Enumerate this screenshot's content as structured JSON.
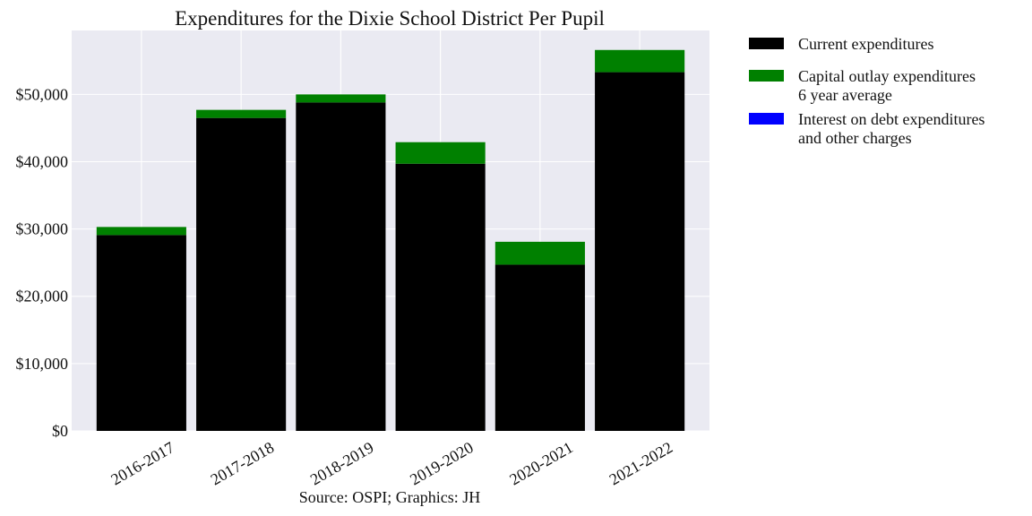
{
  "chart_data": {
    "type": "bar",
    "stacked": true,
    "title": "Expenditures for the Dixie School District Per Pupil",
    "categories": [
      "2016-2017",
      "2017-2018",
      "2018-2019",
      "2019-2020",
      "2020-2021",
      "2021-2022"
    ],
    "series": [
      {
        "name": "Current expenditures",
        "color": "#000000",
        "values": [
          29100,
          46500,
          48800,
          39700,
          24700,
          53300
        ]
      },
      {
        "name": "Capital outlay expenditures\n6 year average",
        "color": "#008000",
        "values": [
          1200,
          1200,
          1200,
          3200,
          3400,
          3300
        ]
      },
      {
        "name": "Interest on debt expenditures\nand other charges",
        "color": "#0000ff",
        "values": [
          0,
          0,
          0,
          0,
          0,
          0
        ]
      }
    ],
    "ylim": [
      0,
      59500
    ],
    "yticks": [
      0,
      10000,
      20000,
      30000,
      40000,
      50000
    ],
    "ytick_labels": [
      "$0",
      "$10,000",
      "$20,000",
      "$30,000",
      "$40,000",
      "$50,000"
    ],
    "xlabel": "Source: OSPI; Graphics: JH",
    "ylabel": "",
    "grid": true,
    "legend_position": "outside-right-top",
    "background_color": "#eaeaf2"
  }
}
